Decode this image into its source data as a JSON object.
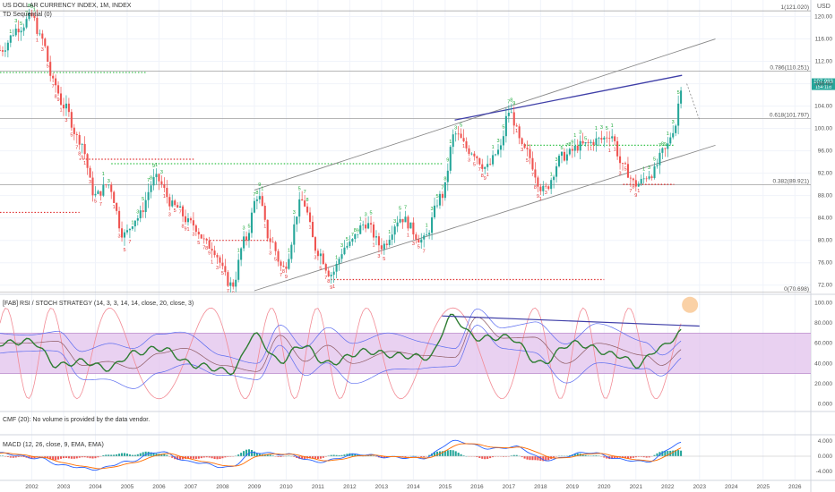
{
  "header": {
    "symbol_line": "US DOLLAR CURRENCY INDEX, 1M, INDEX",
    "td_label": "TD Sequential (0)",
    "rsi_label": "[FAB] RSI / STOCH STRATEGY (14, 3, 3, 14, 14, close, 20, close, 3)",
    "cmf_label": "CMF (20): No volume is provided by the data vendor.",
    "macd_label": "MACD (12, 26, close, 9, EMA, EMA)",
    "currency": "USD"
  },
  "colors": {
    "up": "#26a69a",
    "down": "#ef5350",
    "td_up_count": "#1aa839",
    "td_down_count": "#e03131",
    "rsi_band": "#e1c2ec",
    "rsi_line": "#2e7d32",
    "stoch_line": "#f28b95",
    "channel": "#888888",
    "trendline": "#3f3fa8",
    "price_badge": "#26a69a"
  },
  "price_badge": {
    "value": "107.983",
    "sub": "154:11d"
  },
  "chart_data": [
    {
      "type": "candlestick",
      "title": "US DOLLAR CURRENCY INDEX, 1M, INDEX",
      "x": [
        "2002",
        "2003",
        "2004",
        "2005",
        "2006",
        "2007",
        "2008",
        "2009",
        "2010",
        "2011",
        "2012",
        "2013",
        "2014",
        "2015",
        "2016",
        "2017",
        "2018",
        "2019",
        "2020",
        "2021",
        "2022",
        "2023",
        "2024",
        "2025",
        "2026"
      ],
      "xlim": [
        2001.0,
        2026.5
      ],
      "ylim": [
        71,
        122
      ],
      "y_ticks": [
        "72.00",
        "76.00",
        "80.00",
        "84.00",
        "88.00",
        "92.00",
        "96.00",
        "100.00",
        "104.00",
        "108.00",
        "112.00",
        "116.00",
        "120.00"
      ],
      "price_anchor_points": [
        {
          "t": 2001.0,
          "v": 114
        },
        {
          "t": 2001.6,
          "v": 118
        },
        {
          "t": 2002.0,
          "v": 120
        },
        {
          "t": 2002.3,
          "v": 116
        },
        {
          "t": 2002.7,
          "v": 108
        },
        {
          "t": 2003.0,
          "v": 104
        },
        {
          "t": 2003.5,
          "v": 98
        },
        {
          "t": 2004.0,
          "v": 88
        },
        {
          "t": 2004.4,
          "v": 90
        },
        {
          "t": 2004.9,
          "v": 81
        },
        {
          "t": 2005.3,
          "v": 84
        },
        {
          "t": 2005.9,
          "v": 91
        },
        {
          "t": 2006.5,
          "v": 86
        },
        {
          "t": 2007.0,
          "v": 83
        },
        {
          "t": 2007.6,
          "v": 79
        },
        {
          "t": 2008.3,
          "v": 72
        },
        {
          "t": 2008.7,
          "v": 80
        },
        {
          "t": 2009.1,
          "v": 88
        },
        {
          "t": 2009.5,
          "v": 80
        },
        {
          "t": 2009.9,
          "v": 75
        },
        {
          "t": 2010.5,
          "v": 87
        },
        {
          "t": 2011.0,
          "v": 78
        },
        {
          "t": 2011.4,
          "v": 74
        },
        {
          "t": 2011.9,
          "v": 79
        },
        {
          "t": 2012.5,
          "v": 83
        },
        {
          "t": 2013.0,
          "v": 79
        },
        {
          "t": 2013.6,
          "v": 84
        },
        {
          "t": 2014.3,
          "v": 80
        },
        {
          "t": 2014.9,
          "v": 88
        },
        {
          "t": 2015.3,
          "v": 99
        },
        {
          "t": 2015.8,
          "v": 96
        },
        {
          "t": 2016.3,
          "v": 93
        },
        {
          "t": 2016.7,
          "v": 96
        },
        {
          "t": 2017.0,
          "v": 103
        },
        {
          "t": 2017.5,
          "v": 96
        },
        {
          "t": 2018.1,
          "v": 89
        },
        {
          "t": 2018.7,
          "v": 95
        },
        {
          "t": 2019.3,
          "v": 97
        },
        {
          "t": 2019.9,
          "v": 98
        },
        {
          "t": 2020.2,
          "v": 99
        },
        {
          "t": 2020.6,
          "v": 93
        },
        {
          "t": 2021.0,
          "v": 90
        },
        {
          "t": 2021.5,
          "v": 92
        },
        {
          "t": 2021.9,
          "v": 96
        },
        {
          "t": 2022.2,
          "v": 100
        },
        {
          "t": 2022.45,
          "v": 108
        }
      ],
      "fib_levels": [
        {
          "label": "1(121.020)",
          "value": 121.02
        },
        {
          "label": "0.786(110.251)",
          "value": 110.251
        },
        {
          "label": "0.618(101.797)",
          "value": 101.797
        },
        {
          "label": "0.382(89.921)",
          "value": 89.921
        },
        {
          "label": "0(70.698)",
          "value": 70.698
        }
      ],
      "channel_upper": [
        {
          "t": 2009.0,
          "v": 89
        },
        {
          "t": 2023.5,
          "v": 116
        }
      ],
      "channel_lower": [
        {
          "t": 2009.0,
          "v": 71
        },
        {
          "t": 2023.5,
          "v": 97
        }
      ],
      "trendline": [
        {
          "t": 2015.3,
          "v": 101.5
        },
        {
          "t": 2022.45,
          "v": 109.5
        }
      ],
      "support_lines": [
        {
          "from": 2001.0,
          "to": 2005.6,
          "v": 110,
          "style": "green"
        },
        {
          "from": 2004.5,
          "to": 2014.9,
          "v": 93.7,
          "style": "green"
        },
        {
          "from": 2017.5,
          "to": 2022.2,
          "v": 97,
          "style": "green"
        },
        {
          "from": 2001.0,
          "to": 2003.5,
          "v": 85,
          "style": "red"
        },
        {
          "from": 2003.5,
          "to": 2007.1,
          "v": 94.5,
          "style": "red"
        },
        {
          "from": 2007.6,
          "to": 2009.5,
          "v": 80,
          "style": "red"
        },
        {
          "from": 2011.4,
          "to": 2020.0,
          "v": 73,
          "style": "red"
        },
        {
          "from": 2020.6,
          "to": 2022.2,
          "v": 90,
          "style": "red"
        }
      ]
    },
    {
      "type": "line",
      "title": "[FAB] RSI / STOCH STRATEGY (14, 3, 3, 14, 14, close, 20, close, 3)",
      "ylim": [
        -4,
        104
      ],
      "y_ticks": [
        "0.000",
        "20.000",
        "40.000",
        "60.000",
        "80.000",
        "100.00"
      ],
      "band": [
        30,
        70
      ],
      "rsi_anchor_points": [
        {
          "t": 2001.0,
          "v": 60
        },
        {
          "t": 2002.0,
          "v": 62
        },
        {
          "t": 2002.8,
          "v": 38
        },
        {
          "t": 2003.6,
          "v": 42
        },
        {
          "t": 2004.4,
          "v": 35
        },
        {
          "t": 2005.2,
          "v": 50
        },
        {
          "t": 2006.0,
          "v": 55
        },
        {
          "t": 2007.2,
          "v": 38
        },
        {
          "t": 2008.3,
          "v": 32
        },
        {
          "t": 2009.0,
          "v": 68
        },
        {
          "t": 2009.8,
          "v": 42
        },
        {
          "t": 2010.5,
          "v": 58
        },
        {
          "t": 2011.3,
          "v": 40
        },
        {
          "t": 2012.5,
          "v": 52
        },
        {
          "t": 2013.5,
          "v": 48
        },
        {
          "t": 2014.5,
          "v": 46
        },
        {
          "t": 2015.2,
          "v": 86
        },
        {
          "t": 2016.0,
          "v": 65
        },
        {
          "t": 2017.0,
          "v": 66
        },
        {
          "t": 2018.0,
          "v": 40
        },
        {
          "t": 2019.0,
          "v": 60
        },
        {
          "t": 2020.5,
          "v": 48
        },
        {
          "t": 2021.0,
          "v": 38
        },
        {
          "t": 2021.8,
          "v": 56
        },
        {
          "t": 2022.45,
          "v": 71
        }
      ],
      "trendline": [
        {
          "t": 2014.9,
          "v": 87
        },
        {
          "t": 2023.0,
          "v": 77
        }
      ],
      "highlight": {
        "t": 2022.7,
        "v": 98
      }
    },
    {
      "type": "bar",
      "title": "MACD (12, 26, close, 9, EMA, EMA)",
      "ylim": [
        -5,
        5
      ],
      "y_ticks": [
        "-4.000",
        "0.000",
        "4.000"
      ],
      "macd_anchor_points": [
        {
          "t": 2001.0,
          "v": 0.8
        },
        {
          "t": 2002.2,
          "v": -0.5
        },
        {
          "t": 2003.0,
          "v": -2.5
        },
        {
          "t": 2004.0,
          "v": -3.5
        },
        {
          "t": 2005.0,
          "v": -1.5
        },
        {
          "t": 2006.0,
          "v": 1.2
        },
        {
          "t": 2007.0,
          "v": -1.5
        },
        {
          "t": 2008.2,
          "v": -3.0
        },
        {
          "t": 2009.0,
          "v": 1.0
        },
        {
          "t": 2010.0,
          "v": 0.5
        },
        {
          "t": 2011.0,
          "v": -1.5
        },
        {
          "t": 2012.3,
          "v": 0.5
        },
        {
          "t": 2013.3,
          "v": -0.3
        },
        {
          "t": 2014.3,
          "v": -0.5
        },
        {
          "t": 2015.3,
          "v": 4.0
        },
        {
          "t": 2016.5,
          "v": 2.0
        },
        {
          "t": 2017.2,
          "v": 2.5
        },
        {
          "t": 2018.2,
          "v": -1.0
        },
        {
          "t": 2019.5,
          "v": 1.0
        },
        {
          "t": 2020.7,
          "v": -1.0
        },
        {
          "t": 2021.3,
          "v": -1.5
        },
        {
          "t": 2022.45,
          "v": 3.5
        }
      ]
    }
  ]
}
